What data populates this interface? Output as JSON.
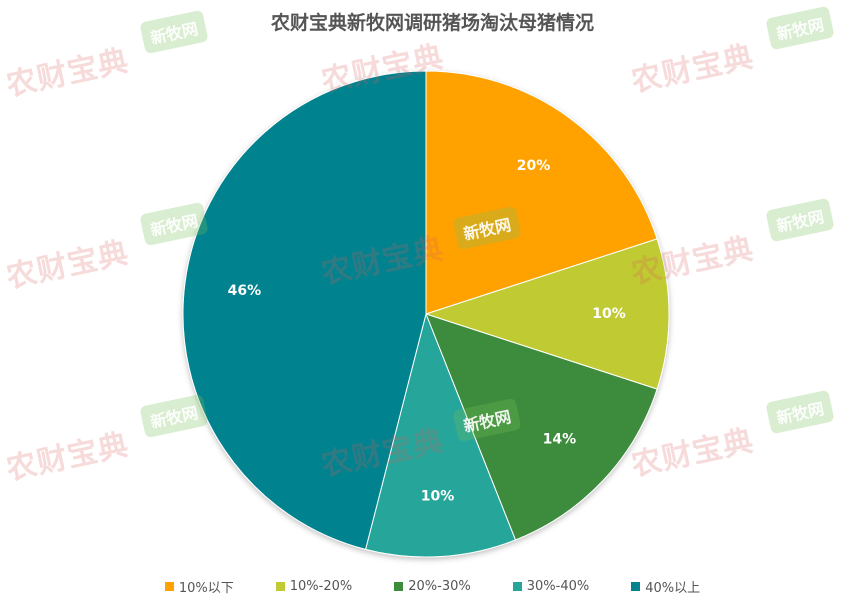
{
  "chart_data": {
    "type": "pie",
    "title": "农财宝典新牧网调研猪场淘汰母猪情况",
    "categories": [
      "10%以下",
      "10%-20%",
      "20%-30%",
      "30%-40%",
      "40%以上"
    ],
    "values": [
      20,
      10,
      14,
      10,
      46
    ],
    "labels": [
      "20%",
      "10%",
      "14%",
      "10%",
      "46%"
    ],
    "colors": [
      "#FFA200",
      "#C0CA33",
      "#3C8C3C",
      "#26A69A",
      "#00838F"
    ],
    "legend": "bottom"
  },
  "watermarks": {
    "red_text": "农财宝典",
    "green_text": "新牧网"
  }
}
